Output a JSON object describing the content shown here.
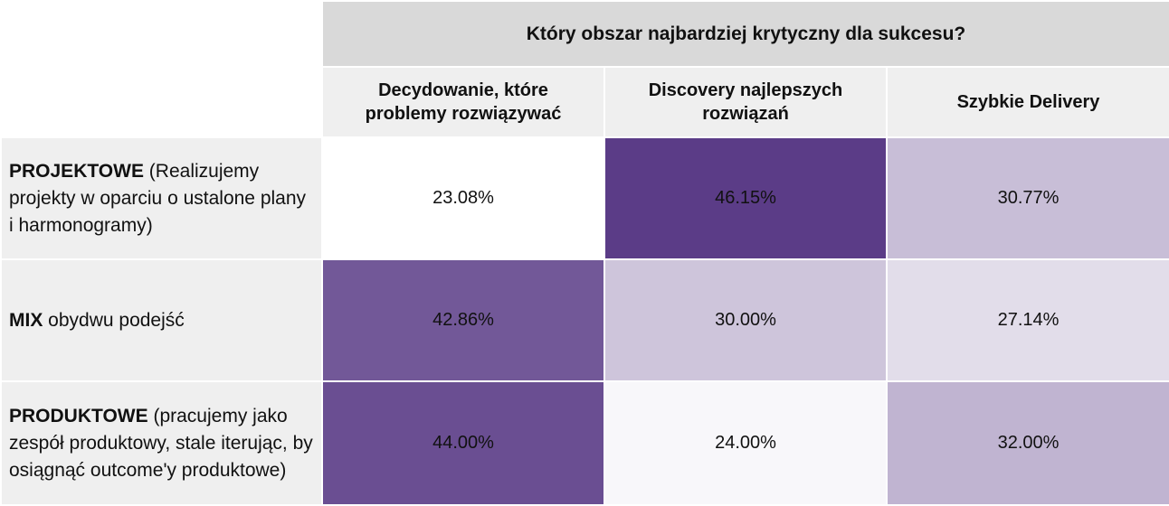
{
  "chart_data": {
    "type": "heatmap",
    "title": "Który obszar najbardziej krytyczny dla sukcesu?",
    "columns": [
      "Decydowanie, które problemy rozwiązywać",
      "Discovery najlepszych rozwiązań",
      "Szybkie Delivery"
    ],
    "rows": [
      {
        "label_bold": "PROJEKTOWE",
        "label_rest": " (Realizujemy projekty w oparciu o ustalone plany i harmonogramy)"
      },
      {
        "label_bold": "MIX",
        "label_rest": " obydwu podejść"
      },
      {
        "label_bold": "PRODUKTOWE",
        "label_rest": " (pracujemy jako zespół produktowy, stale iterując, by osiągnąć outcome'y produktowe)"
      }
    ],
    "values": [
      [
        23.08,
        46.15,
        30.77
      ],
      [
        42.86,
        30.0,
        27.14
      ],
      [
        44.0,
        24.0,
        32.0
      ]
    ],
    "value_labels": [
      [
        "23.08%",
        "46.15%",
        "30.77%"
      ],
      [
        "42.86%",
        "30.00%",
        "27.14%"
      ],
      [
        "44.00%",
        "24.00%",
        "32.00%"
      ]
    ],
    "color_scale": {
      "min": 23.08,
      "max": 46.15,
      "low_color": "#ffffff",
      "high_color": "#5b3c87"
    }
  }
}
